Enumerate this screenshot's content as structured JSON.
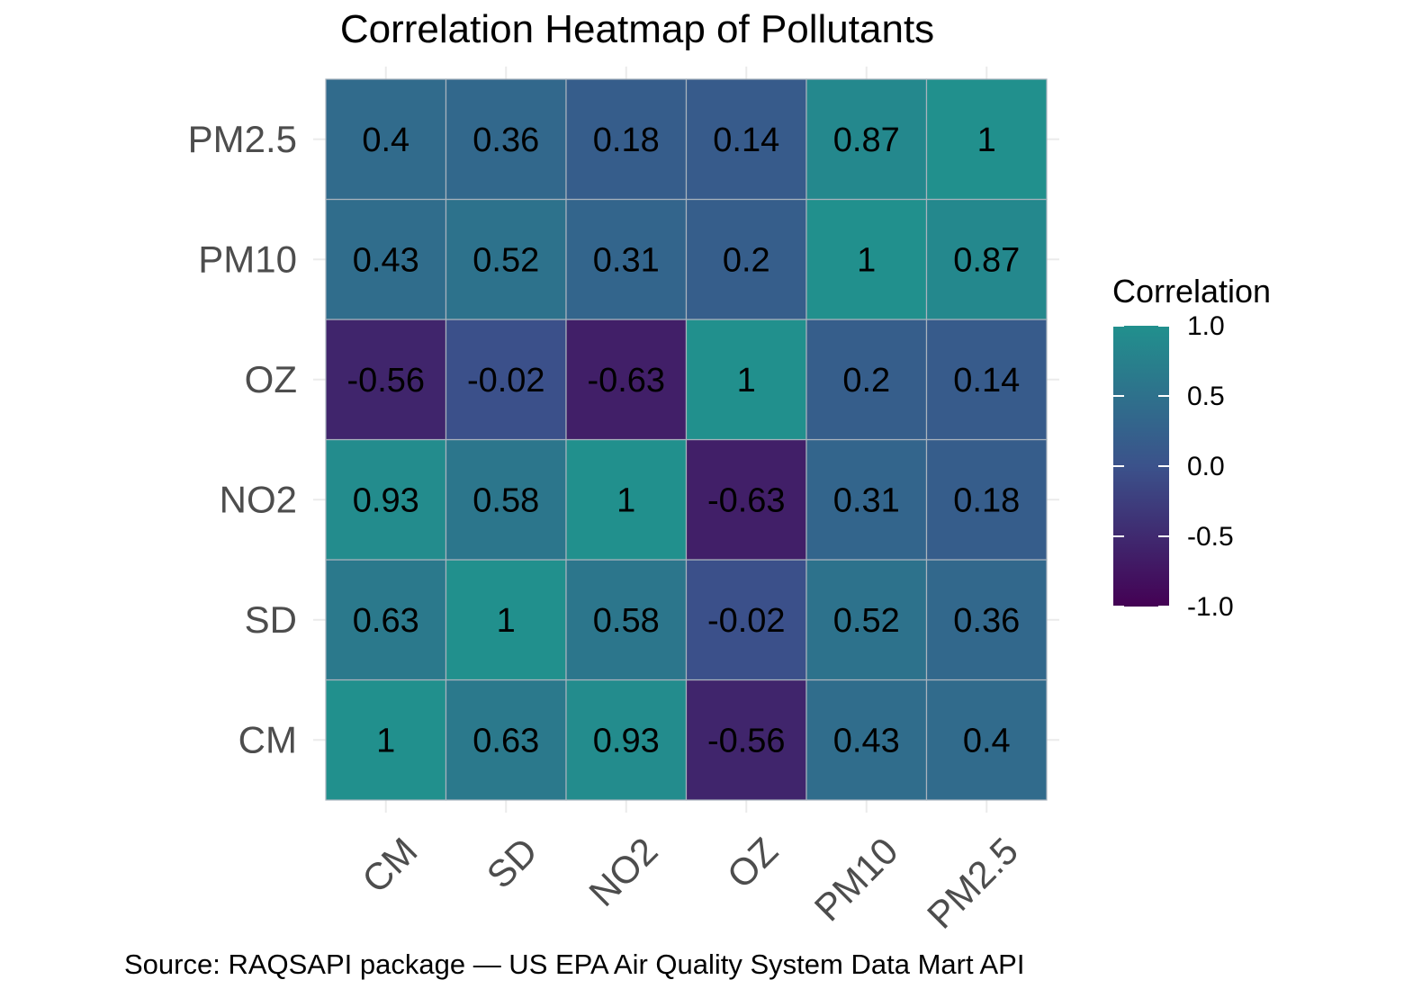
{
  "chart_data": {
    "type": "heatmap",
    "title": "Correlation Heatmap of Pollutants",
    "caption": "Source: RAQSAPI package — US EPA Air Quality System Data Mart API",
    "x_categories": [
      "CM",
      "SD",
      "NO2",
      "OZ",
      "PM10",
      "PM2.5"
    ],
    "y_categories": [
      "CM",
      "SD",
      "NO2",
      "OZ",
      "PM10",
      "PM2.5"
    ],
    "values": [
      [
        1,
        0.63,
        0.93,
        -0.56,
        0.43,
        0.4
      ],
      [
        0.63,
        1,
        0.58,
        -0.02,
        0.52,
        0.36
      ],
      [
        0.93,
        0.58,
        1,
        -0.63,
        0.31,
        0.18
      ],
      [
        -0.56,
        -0.02,
        -0.63,
        1,
        0.2,
        0.14
      ],
      [
        0.43,
        0.52,
        0.31,
        0.2,
        1,
        0.87
      ],
      [
        0.4,
        0.36,
        0.18,
        0.14,
        0.87,
        1
      ]
    ],
    "cell_labels": [
      [
        "1",
        "0.63",
        "0.93",
        "-0.56",
        "0.43",
        "0.4"
      ],
      [
        "0.63",
        "1",
        "0.58",
        "-0.02",
        "0.52",
        "0.36"
      ],
      [
        "0.93",
        "0.58",
        "1",
        "-0.63",
        "0.31",
        "0.18"
      ],
      [
        "-0.56",
        "-0.02",
        "-0.63",
        "1",
        "0.2",
        "0.14"
      ],
      [
        "0.43",
        "0.52",
        "0.31",
        "0.2",
        "1",
        "0.87"
      ],
      [
        "0.4",
        "0.36",
        "0.18",
        "0.14",
        "0.87",
        "1"
      ]
    ],
    "legend": {
      "title": "Correlation",
      "position": "right",
      "range": [
        -1,
        1
      ],
      "ticks": [
        1.0,
        0.5,
        0.0,
        -0.5,
        -1.0
      ],
      "tick_labels": [
        "1.0",
        "0.5",
        "0.0",
        "-0.5",
        "-1.0"
      ]
    },
    "color_scale": [
      "#440154",
      "#3b528b",
      "#21908d"
    ],
    "x_tick_rotation": 45,
    "grid": true
  }
}
